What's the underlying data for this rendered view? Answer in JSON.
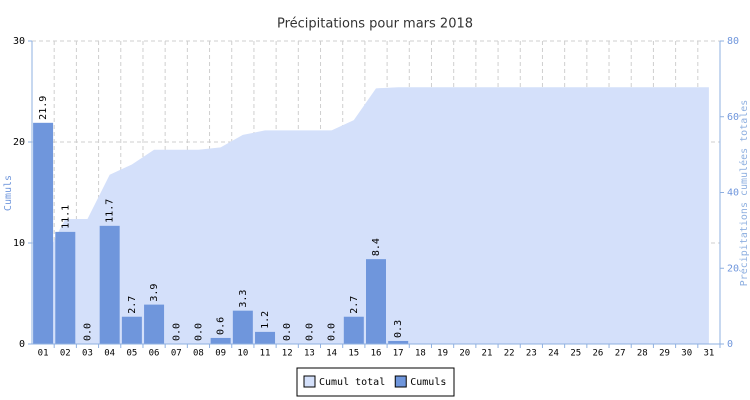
{
  "chart_data": {
    "type": "bar",
    "title": "Précipitations pour mars 2018",
    "y_label": "Cumuls",
    "y2_label": "Précipitations cumulées totales",
    "categories": [
      "01",
      "02",
      "03",
      "04",
      "05",
      "06",
      "07",
      "08",
      "09",
      "10",
      "11",
      "12",
      "13",
      "14",
      "15",
      "16",
      "17",
      "18",
      "19",
      "20",
      "21",
      "22",
      "23",
      "24",
      "25",
      "26",
      "27",
      "28",
      "29",
      "30",
      "31"
    ],
    "ylim": [
      0,
      30
    ],
    "yticks": [
      0,
      10,
      20,
      30
    ],
    "y2lim": [
      0,
      80
    ],
    "y2ticks": [
      0,
      20,
      40,
      60,
      80
    ],
    "grid": true,
    "legend": "bottom",
    "series": [
      {
        "name": "Cumul total",
        "type": "area",
        "axis": "y2",
        "color": "#d4e0fa",
        "values": [
          21.9,
          33.0,
          33.0,
          44.7,
          47.4,
          51.3,
          51.3,
          51.3,
          51.9,
          55.2,
          56.4,
          56.4,
          56.4,
          56.4,
          59.1,
          67.5,
          67.8,
          67.8,
          67.8,
          67.8,
          67.8,
          67.8,
          67.8,
          67.8,
          67.8,
          67.8,
          67.8,
          67.8,
          67.8,
          67.8,
          67.8
        ]
      },
      {
        "name": "Cumuls",
        "type": "bar",
        "color": "#6f96dc",
        "values": [
          21.9,
          11.1,
          0,
          11.7,
          2.7,
          3.9,
          0,
          0,
          0.6,
          3.3,
          1.2,
          0,
          0,
          0,
          2.7,
          8.4,
          0.3,
          null,
          null,
          null,
          null,
          null,
          null,
          null,
          null,
          null,
          null,
          null,
          null,
          null,
          null
        ],
        "value_labels": [
          "21.9",
          "11.1",
          "0.0",
          "11.7",
          "2.7",
          "3.9",
          "0.0",
          "0.0",
          "0.6",
          "3.3",
          "1.2",
          "0.0",
          "0.0",
          "0.0",
          "2.7",
          "8.4",
          "0.3",
          null,
          null,
          null,
          null,
          null,
          null,
          null,
          null,
          null,
          null,
          null,
          null,
          null,
          null
        ]
      }
    ]
  }
}
